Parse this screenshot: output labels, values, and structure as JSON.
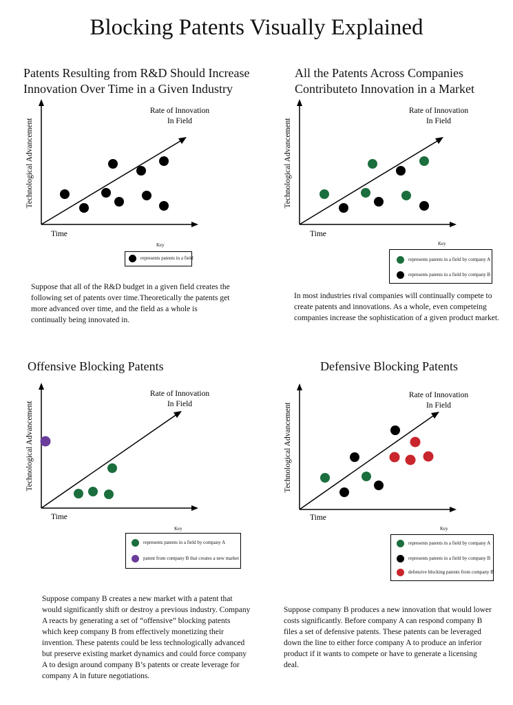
{
  "page_title": "Blocking Patents Visually Explained",
  "colors": {
    "company_a": "#1b6e3d",
    "company_b": "#000000",
    "new_market": "#6a3d9a",
    "defensive": "#c9252c",
    "axis": "#000000"
  },
  "common": {
    "y_axis_label": "Technological Advancement",
    "x_axis_label": "Time",
    "trend_label_line1": "Rate of Innovation",
    "trend_label_line2": "In Field",
    "key_label": "Key"
  },
  "panels": [
    {
      "title_line1": "Patents Resulting from R&D Should Increase",
      "title_line2": "Innovation Over Time in a Given Industry",
      "legend": [
        {
          "label": "represents patents in a field",
          "color": "#000000"
        }
      ],
      "description": "Suppose that all of the R&D budget in a given field creates the following set of patents over time.Theoretically the patents get more advanced over time, and the field as a whole is continually being innovated in."
    },
    {
      "title_line1": "All the Patents Across Companies",
      "title_line2": "Contributeto Innovation in a Market",
      "legend": [
        {
          "label": "represents patents in a field by company A",
          "color": "#1b6e3d"
        },
        {
          "label": "represents patents in a field by company B",
          "color": "#000000"
        }
      ],
      "description": "In most industries rival companies will continually compete to create patents and innovations. As a whole, even competeing companies increase the sophistication of a given product market."
    },
    {
      "title_line1": "Offensive Blocking Patents",
      "title_line2": "",
      "legend": [
        {
          "label": "represents patents in a field by company A",
          "color": "#1b6e3d"
        },
        {
          "label": "patent from company B that creates a new market",
          "color": "#6a3d9a"
        }
      ],
      "description": "Suppose company B creates a new market with a patent that would significantly shift or destroy a previous industry. Company A reacts by generating a set of “offensive” blocking patents which keep company B from effectively monetizing their invention. These patents could be less technologically advanced but preserve existing market dynamics and could force company A to design around company B’s patents or create leverage for company A in future negotiations."
    },
    {
      "title_line1": "Defensive Blocking Patents",
      "title_line2": "",
      "legend": [
        {
          "label": "represents patents in a field by company A",
          "color": "#1b6e3d"
        },
        {
          "label": "represents patents in a field by company B",
          "color": "#000000"
        },
        {
          "label": "defensive blocking patents from company B",
          "color": "#c9252c"
        }
      ],
      "description": "Suppose company B produces a new innovation that would lower costs significantly. Before company A can respond company B files a set of defensive patents. These patents can be leveraged down the line to either force company A to produce an inferior product if it wants to compete or have to generate a licensing deal."
    }
  ]
}
